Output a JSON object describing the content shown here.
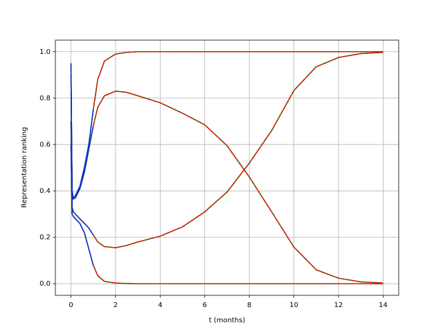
{
  "chart_data": {
    "type": "line",
    "xlabel": "t (months)",
    "ylabel": "Representation ranking",
    "x": [
      0,
      0.05,
      0.1,
      0.2,
      0.4,
      0.6,
      0.8,
      1,
      1.2,
      1.5,
      2,
      2.5,
      3,
      4,
      5,
      6,
      7,
      8,
      9,
      10,
      11,
      12,
      13,
      14
    ],
    "series": [
      {
        "color": "#008000",
        "style": "solid",
        "values": [
          0.95,
          0.4,
          0.37,
          0.38,
          0.42,
          0.5,
          0.6,
          0.75,
          0.88,
          0.96,
          0.99,
          0.997,
          1,
          1,
          1,
          1,
          1,
          1,
          1,
          1,
          1,
          1,
          1,
          1
        ]
      },
      {
        "color": "#008000",
        "style": "solid",
        "values": [
          0.9,
          0.4,
          0.365,
          0.37,
          0.41,
          0.48,
          0.58,
          0.68,
          0.76,
          0.81,
          0.83,
          0.825,
          0.81,
          0.78,
          0.735,
          0.685,
          0.595,
          0.46,
          0.31,
          0.158,
          0.06,
          0.024,
          0.008,
          0.003
        ]
      },
      {
        "color": "#008000",
        "style": "solid",
        "values": [
          0.7,
          0.33,
          0.31,
          0.3,
          0.28,
          0.26,
          0.24,
          0.21,
          0.18,
          0.16,
          0.155,
          0.165,
          0.18,
          0.205,
          0.245,
          0.31,
          0.395,
          0.52,
          0.66,
          0.833,
          0.935,
          0.975,
          0.992,
          0.997
        ]
      },
      {
        "color": "#008000",
        "style": "solid",
        "values": [
          0.6,
          0.3,
          0.29,
          0.28,
          0.26,
          0.22,
          0.15,
          0.08,
          0.035,
          0.01,
          0.003,
          0.001,
          0,
          0,
          0,
          0,
          0,
          0,
          0,
          0,
          0,
          0,
          0,
          0
        ]
      },
      {
        "color": "#ff0000",
        "style": "dashed",
        "values": [
          0.95,
          0.4,
          0.37,
          0.38,
          0.42,
          0.5,
          0.6,
          0.75,
          0.88,
          0.96,
          0.99,
          0.997,
          1,
          1,
          1,
          1,
          1,
          1,
          1,
          1,
          1,
          1,
          1,
          1
        ]
      },
      {
        "color": "#ff0000",
        "style": "dashed",
        "values": [
          0.9,
          0.4,
          0.365,
          0.37,
          0.41,
          0.48,
          0.58,
          0.68,
          0.76,
          0.81,
          0.83,
          0.825,
          0.81,
          0.78,
          0.735,
          0.685,
          0.595,
          0.46,
          0.31,
          0.158,
          0.06,
          0.024,
          0.008,
          0.003
        ]
      },
      {
        "color": "#ff0000",
        "style": "dashed",
        "values": [
          0.7,
          0.33,
          0.31,
          0.3,
          0.28,
          0.26,
          0.24,
          0.21,
          0.18,
          0.16,
          0.155,
          0.165,
          0.18,
          0.205,
          0.245,
          0.31,
          0.395,
          0.52,
          0.66,
          0.833,
          0.935,
          0.975,
          0.992,
          0.997
        ]
      },
      {
        "color": "#ff0000",
        "style": "dashed",
        "values": [
          0.6,
          0.3,
          0.29,
          0.28,
          0.26,
          0.22,
          0.15,
          0.08,
          0.035,
          0.01,
          0.003,
          0.001,
          0,
          0,
          0,
          0,
          0,
          0,
          0,
          0,
          0,
          0,
          0,
          0
        ]
      },
      {
        "color": "#0033cc",
        "style": "solid",
        "values": [
          0.95,
          0.4,
          0.37,
          0.38,
          0.42,
          0.5,
          0.6,
          0.75,
          null,
          null,
          null,
          null,
          null,
          null,
          null,
          null,
          null,
          null,
          null,
          null,
          null,
          null,
          null,
          null
        ]
      },
      {
        "color": "#0033cc",
        "style": "solid",
        "values": [
          0.9,
          0.4,
          0.365,
          0.37,
          0.41,
          0.48,
          0.58,
          0.68,
          null,
          null,
          null,
          null,
          null,
          null,
          null,
          null,
          null,
          null,
          null,
          null,
          null,
          null,
          null,
          null
        ]
      },
      {
        "color": "#0033cc",
        "style": "solid",
        "values": [
          0.7,
          0.33,
          0.31,
          0.3,
          0.28,
          0.26,
          0.24,
          0.21,
          null,
          null,
          null,
          null,
          null,
          null,
          null,
          null,
          null,
          null,
          null,
          null,
          null,
          null,
          null,
          null
        ]
      },
      {
        "color": "#0033cc",
        "style": "solid",
        "values": [
          0.6,
          0.3,
          0.29,
          0.28,
          0.26,
          0.22,
          0.15,
          0.08,
          null,
          null,
          null,
          null,
          null,
          null,
          null,
          null,
          null,
          null,
          null,
          null,
          null,
          null,
          null,
          null
        ]
      }
    ],
    "xlim": [
      -0.7,
      14.7
    ],
    "xticks": [
      0,
      2,
      4,
      6,
      8,
      10,
      12,
      14
    ],
    "ylim": [
      -0.05,
      1.05
    ],
    "yticks": [
      {
        "value": 0,
        "label": "0.0"
      },
      0.2,
      0.4,
      0.6,
      0.8,
      {
        "value": 1,
        "label": "1.0"
      }
    ],
    "grid": true
  }
}
